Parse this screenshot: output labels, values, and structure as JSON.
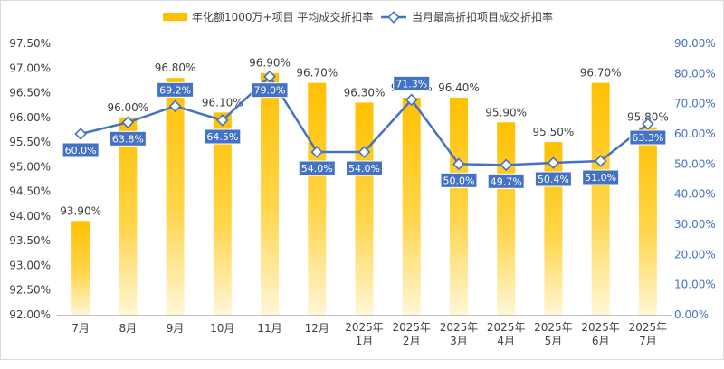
{
  "chart_data": {
    "type": "bar+line",
    "categories": [
      [
        "7月"
      ],
      [
        "8月"
      ],
      [
        "9月"
      ],
      [
        "10月"
      ],
      [
        "11月"
      ],
      [
        "12月"
      ],
      [
        "2025年",
        "1月"
      ],
      [
        "2025年",
        "2月"
      ],
      [
        "2025年",
        "3月"
      ],
      [
        "2025年",
        "4月"
      ],
      [
        "2025年",
        "5月"
      ],
      [
        "2025年",
        "6月"
      ],
      [
        "2025年",
        "7月"
      ]
    ],
    "series": [
      {
        "name": "年化额1000万+项目 平均成交折扣率",
        "kind": "bar",
        "axis": "left",
        "values": [
          93.9,
          96.0,
          96.8,
          96.1,
          96.9,
          96.7,
          96.3,
          96.4,
          96.4,
          95.9,
          95.5,
          96.7,
          95.8
        ],
        "labels": [
          "93.90%",
          "96.00%",
          "96.80%",
          "96.10%",
          "96.90%",
          "96.70%",
          "96.30%",
          "96.40%",
          "96.40%",
          "95.90%",
          "95.50%",
          "96.70%",
          "95.80%"
        ],
        "color": "#FFC000"
      },
      {
        "name": "当月最高折扣项目成交折扣率",
        "kind": "line",
        "axis": "right",
        "values": [
          60.0,
          63.8,
          69.2,
          64.5,
          79.0,
          54.0,
          54.0,
          71.3,
          50.0,
          49.7,
          50.4,
          51.0,
          63.3
        ],
        "labels": [
          "60.0%",
          "63.8%",
          "69.2%",
          "64.5%",
          "79.0%",
          "54.0%",
          "54.0%",
          "71.3%",
          "50.0%",
          "49.7%",
          "50.4%",
          "51.0%",
          "63.3%"
        ],
        "color": "#4472C4"
      }
    ],
    "y_left": {
      "min": 92.0,
      "max": 97.5,
      "step": 0.5,
      "ticks": [
        "92.00%",
        "92.50%",
        "93.00%",
        "93.50%",
        "94.00%",
        "94.50%",
        "95.00%",
        "95.50%",
        "96.00%",
        "96.50%",
        "97.00%",
        "97.50%"
      ]
    },
    "y_right": {
      "min": 0,
      "max": 90,
      "step": 10,
      "ticks": [
        "0.00%",
        "10.00%",
        "20.00%",
        "30.00%",
        "40.00%",
        "50.00%",
        "60.00%",
        "70.00%",
        "80.00%",
        "90.00%"
      ]
    },
    "grid": false,
    "legend_position": "top"
  }
}
